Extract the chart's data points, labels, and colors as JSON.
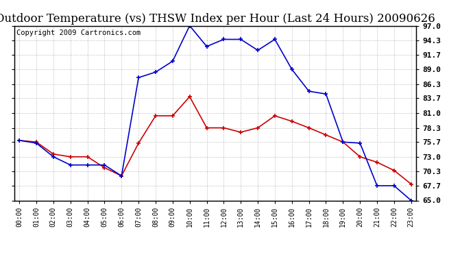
{
  "title": "Outdoor Temperature (vs) THSW Index per Hour (Last 24 Hours) 20090626",
  "copyright": "Copyright 2009 Cartronics.com",
  "hours": [
    "00:00",
    "01:00",
    "02:00",
    "03:00",
    "04:00",
    "05:00",
    "06:00",
    "07:00",
    "08:00",
    "09:00",
    "10:00",
    "11:00",
    "12:00",
    "13:00",
    "14:00",
    "15:00",
    "16:00",
    "17:00",
    "18:00",
    "19:00",
    "20:00",
    "21:00",
    "22:00",
    "23:00"
  ],
  "temp": [
    76.0,
    75.7,
    73.5,
    73.0,
    73.0,
    71.0,
    69.5,
    75.5,
    80.5,
    80.5,
    84.0,
    78.3,
    78.3,
    77.5,
    78.3,
    80.5,
    79.5,
    78.3,
    77.0,
    75.7,
    73.0,
    72.0,
    70.5,
    68.0
  ],
  "thsw": [
    76.0,
    75.5,
    73.0,
    71.5,
    71.5,
    71.5,
    69.5,
    87.5,
    88.5,
    90.5,
    97.0,
    93.2,
    94.5,
    94.5,
    92.5,
    94.5,
    89.0,
    85.0,
    84.5,
    75.7,
    75.5,
    67.7,
    67.7,
    65.0
  ],
  "temp_color": "#cc0000",
  "thsw_color": "#0000cc",
  "bg_color": "#ffffff",
  "plot_bg_color": "#ffffff",
  "grid_color": "#aaaaaa",
  "ymin": 65.0,
  "ymax": 97.0,
  "yticks": [
    97.0,
    94.3,
    91.7,
    89.0,
    86.3,
    83.7,
    81.0,
    78.3,
    75.7,
    73.0,
    70.3,
    67.7,
    65.0
  ],
  "title_fontsize": 12,
  "copyright_fontsize": 7.5,
  "tick_fontsize": 8,
  "xlabel_fontsize": 7
}
